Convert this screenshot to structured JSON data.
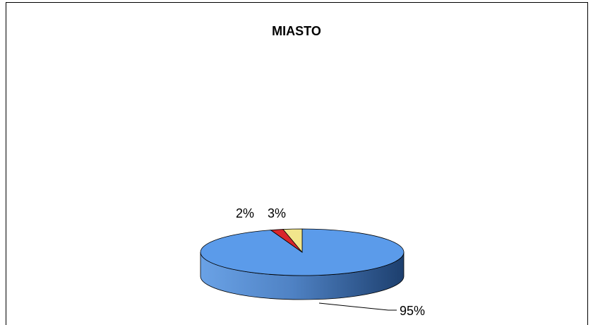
{
  "chart_data": {
    "type": "pie",
    "style": "3d",
    "title": "MIASTO",
    "slices": [
      {
        "value": 95,
        "label": "95%",
        "color": "#5b9bea"
      },
      {
        "value": 2,
        "label": "2%",
        "color": "#d9262b"
      },
      {
        "value": 3,
        "label": "3%",
        "color": "#f2e68c"
      }
    ],
    "legend": "none"
  }
}
